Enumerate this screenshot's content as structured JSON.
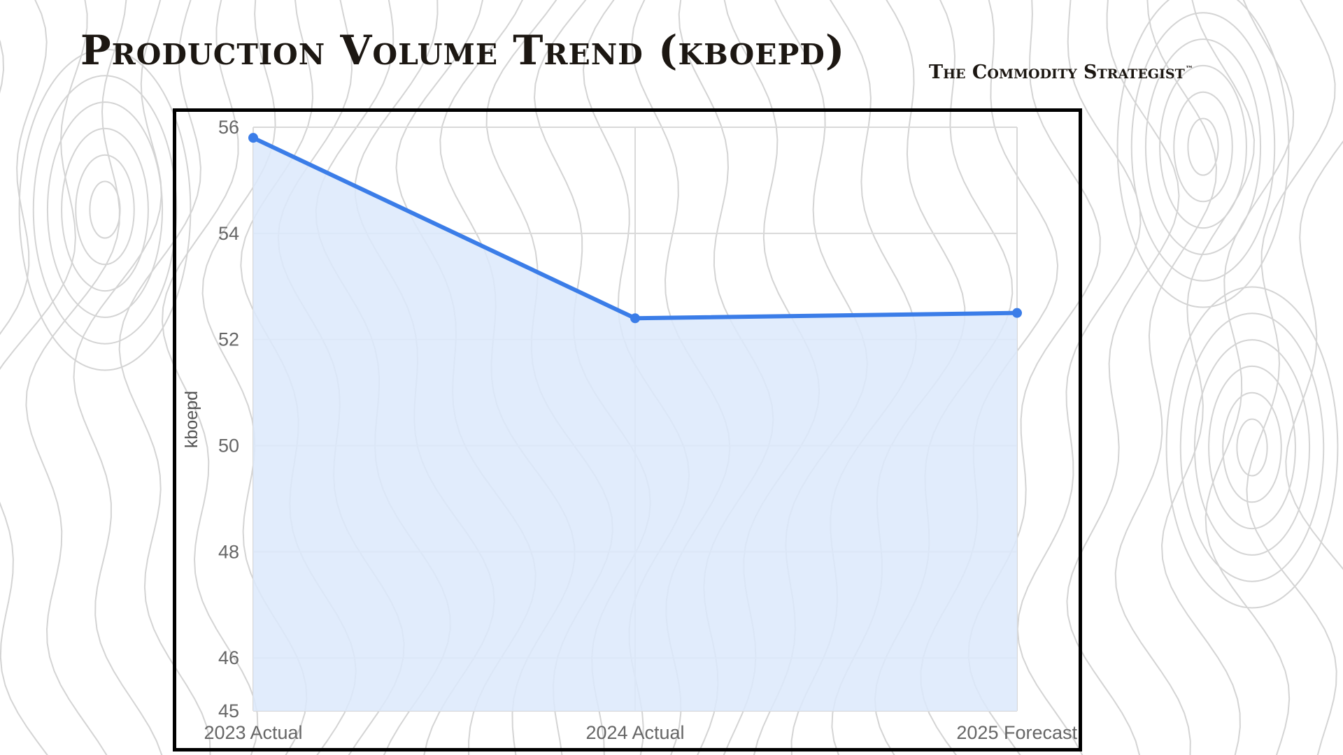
{
  "slide": {
    "title": "Production Volume Trend (kboepd)",
    "brand": "The Commodity Strategist",
    "brand_mark": "™"
  },
  "chart_data": {
    "type": "area",
    "title": "",
    "xlabel": "",
    "ylabel": "kboepd",
    "categories": [
      "2023 Actual",
      "2024 Actual",
      "2025 Forecast"
    ],
    "series": [
      {
        "values": [
          55.8,
          52.4,
          52.5
        ]
      }
    ],
    "ylim": [
      45,
      56
    ],
    "yticks": [
      45,
      46,
      48,
      50,
      52,
      54,
      56
    ],
    "grid": true,
    "legend": "none",
    "colors": {
      "line": "#3b7de8",
      "fill": "#dce9fc",
      "grid": "#d9d9d9"
    }
  }
}
